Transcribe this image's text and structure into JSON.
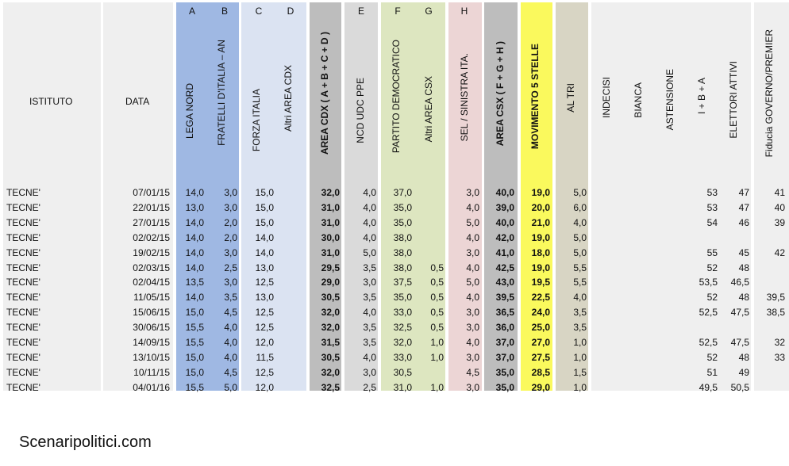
{
  "header": {
    "istituto": "ISTITUTO",
    "data": "DATA",
    "letters": {
      "A": "A",
      "B": "B",
      "C": "C",
      "D": "D",
      "E": "E",
      "F": "F",
      "G": "G",
      "H": "H"
    },
    "columns": {
      "lega": "LEGA NORD",
      "fdi": "FRATELLI D'ITALIA – AN",
      "fi": "FORZA ITALIA",
      "altri_cdx": "Altri AREA CDX",
      "area_cdx": "AREA CDX   ( A + B + C + D )",
      "ncd": "NCD UDC PPE",
      "pd": "PARTITO DEMOCRATICO",
      "altri_csx": "Altri AREA CSX",
      "sel": "SEL / SINISTRA ITA.",
      "area_csx": "AREA CSX   ( F + G + H )",
      "m5s": "MOVIMENTO 5 STELLE",
      "altri": "AL TRI",
      "indecisi": "INDECISI",
      "bianca": "BIANCA",
      "astensione": "ASTENSIONE",
      "iba": "I + B + A",
      "elettori": "ELETTORI ATTIVI",
      "fiducia": "Fiducia GOVERNO/PREMIER"
    }
  },
  "colors": {
    "grey": "#efefef",
    "blue": "#9fb8e3",
    "light_blue": "#dbe3f2",
    "dark_grey": "#bdbdbd",
    "mid_grey": "#dadada",
    "green": "#dde6c0",
    "pink": "#ecd5d5",
    "yellow": "#faf95d",
    "khaki": "#d8d5c4"
  },
  "rows": [
    {
      "istituto": "TECNE'",
      "data": "07/01/15",
      "lega": "14,0",
      "fdi": "3,0",
      "fi": "15,0",
      "altri_cdx": "",
      "area_cdx": "32,0",
      "ncd": "4,0",
      "pd": "37,0",
      "altri_csx": "",
      "sel": "3,0",
      "area_csx": "40,0",
      "m5s": "19,0",
      "altri": "5,0",
      "iba": "53",
      "elettori": "47",
      "fiducia": "41"
    },
    {
      "istituto": "TECNE'",
      "data": "22/01/15",
      "lega": "13,0",
      "fdi": "3,0",
      "fi": "15,0",
      "altri_cdx": "",
      "area_cdx": "31,0",
      "ncd": "4,0",
      "pd": "35,0",
      "altri_csx": "",
      "sel": "4,0",
      "area_csx": "39,0",
      "m5s": "20,0",
      "altri": "6,0",
      "iba": "53",
      "elettori": "47",
      "fiducia": "40"
    },
    {
      "istituto": "TECNE'",
      "data": "27/01/15",
      "lega": "14,0",
      "fdi": "2,0",
      "fi": "15,0",
      "altri_cdx": "",
      "area_cdx": "31,0",
      "ncd": "4,0",
      "pd": "35,0",
      "altri_csx": "",
      "sel": "5,0",
      "area_csx": "40,0",
      "m5s": "21,0",
      "altri": "4,0",
      "iba": "54",
      "elettori": "46",
      "fiducia": "39"
    },
    {
      "istituto": "TECNE'",
      "data": "02/02/15",
      "lega": "14,0",
      "fdi": "2,0",
      "fi": "14,0",
      "altri_cdx": "",
      "area_cdx": "30,0",
      "ncd": "4,0",
      "pd": "38,0",
      "altri_csx": "",
      "sel": "4,0",
      "area_csx": "42,0",
      "m5s": "19,0",
      "altri": "5,0",
      "iba": "",
      "elettori": "",
      "fiducia": ""
    },
    {
      "istituto": "TECNE'",
      "data": "19/02/15",
      "lega": "14,0",
      "fdi": "3,0",
      "fi": "14,0",
      "altri_cdx": "",
      "area_cdx": "31,0",
      "ncd": "5,0",
      "pd": "38,0",
      "altri_csx": "",
      "sel": "3,0",
      "area_csx": "41,0",
      "m5s": "18,0",
      "altri": "5,0",
      "iba": "55",
      "elettori": "45",
      "fiducia": "42"
    },
    {
      "istituto": "TECNE'",
      "data": "02/03/15",
      "lega": "14,0",
      "fdi": "2,5",
      "fi": "13,0",
      "altri_cdx": "",
      "area_cdx": "29,5",
      "ncd": "3,5",
      "pd": "38,0",
      "altri_csx": "0,5",
      "sel": "4,0",
      "area_csx": "42,5",
      "m5s": "19,0",
      "altri": "5,5",
      "iba": "52",
      "elettori": "48",
      "fiducia": ""
    },
    {
      "istituto": "TECNE'",
      "data": "02/04/15",
      "lega": "13,5",
      "fdi": "3,0",
      "fi": "12,5",
      "altri_cdx": "",
      "area_cdx": "29,0",
      "ncd": "3,0",
      "pd": "37,5",
      "altri_csx": "0,5",
      "sel": "5,0",
      "area_csx": "43,0",
      "m5s": "19,5",
      "altri": "5,5",
      "iba": "53,5",
      "elettori": "46,5",
      "fiducia": ""
    },
    {
      "istituto": "TECNE'",
      "data": "11/05/15",
      "lega": "14,0",
      "fdi": "3,5",
      "fi": "13,0",
      "altri_cdx": "",
      "area_cdx": "30,5",
      "ncd": "3,5",
      "pd": "35,0",
      "altri_csx": "0,5",
      "sel": "4,0",
      "area_csx": "39,5",
      "m5s": "22,5",
      "altri": "4,0",
      "iba": "52",
      "elettori": "48",
      "fiducia": "39,5"
    },
    {
      "istituto": "TECNE'",
      "data": "15/06/15",
      "lega": "15,0",
      "fdi": "4,5",
      "fi": "12,5",
      "altri_cdx": "",
      "area_cdx": "32,0",
      "ncd": "4,0",
      "pd": "33,0",
      "altri_csx": "0,5",
      "sel": "3,0",
      "area_csx": "36,5",
      "m5s": "24,0",
      "altri": "3,5",
      "iba": "52,5",
      "elettori": "47,5",
      "fiducia": "38,5"
    },
    {
      "istituto": "TECNE'",
      "data": "30/06/15",
      "lega": "15,5",
      "fdi": "4,0",
      "fi": "12,5",
      "altri_cdx": "",
      "area_cdx": "32,0",
      "ncd": "3,5",
      "pd": "32,5",
      "altri_csx": "0,5",
      "sel": "3,0",
      "area_csx": "36,0",
      "m5s": "25,0",
      "altri": "3,5",
      "iba": "",
      "elettori": "",
      "fiducia": ""
    },
    {
      "istituto": "TECNE'",
      "data": "14/09/15",
      "lega": "15,5",
      "fdi": "4,0",
      "fi": "12,0",
      "altri_cdx": "",
      "area_cdx": "31,5",
      "ncd": "3,5",
      "pd": "32,0",
      "altri_csx": "1,0",
      "sel": "4,0",
      "area_csx": "37,0",
      "m5s": "27,0",
      "altri": "1,0",
      "iba": "52,5",
      "elettori": "47,5",
      "fiducia": "32"
    },
    {
      "istituto": "TECNE'",
      "data": "13/10/15",
      "lega": "15,0",
      "fdi": "4,0",
      "fi": "11,5",
      "altri_cdx": "",
      "area_cdx": "30,5",
      "ncd": "4,0",
      "pd": "33,0",
      "altri_csx": "1,0",
      "sel": "3,0",
      "area_csx": "37,0",
      "m5s": "27,5",
      "altri": "1,0",
      "iba": "52",
      "elettori": "48",
      "fiducia": "33"
    },
    {
      "istituto": "TECNE'",
      "data": "10/11/15",
      "lega": "15,0",
      "fdi": "4,5",
      "fi": "12,5",
      "altri_cdx": "",
      "area_cdx": "32,0",
      "ncd": "3,0",
      "pd": "30,5",
      "altri_csx": "",
      "sel": "4,5",
      "area_csx": "35,0",
      "m5s": "28,5",
      "altri": "1,5",
      "iba": "51",
      "elettori": "49",
      "fiducia": ""
    },
    {
      "istituto": "TECNE'",
      "data": "04/01/16",
      "lega": "15,5",
      "fdi": "5,0",
      "fi": "12,0",
      "altri_cdx": "",
      "area_cdx": "32,5",
      "ncd": "2,5",
      "pd": "31,0",
      "altri_csx": "1,0",
      "sel": "3,0",
      "area_csx": "35,0",
      "m5s": "29,0",
      "altri": "1,0",
      "iba": "49,5",
      "elettori": "50,5",
      "fiducia": ""
    }
  ],
  "footer": {
    "text": "Scenaripolitici.com"
  }
}
